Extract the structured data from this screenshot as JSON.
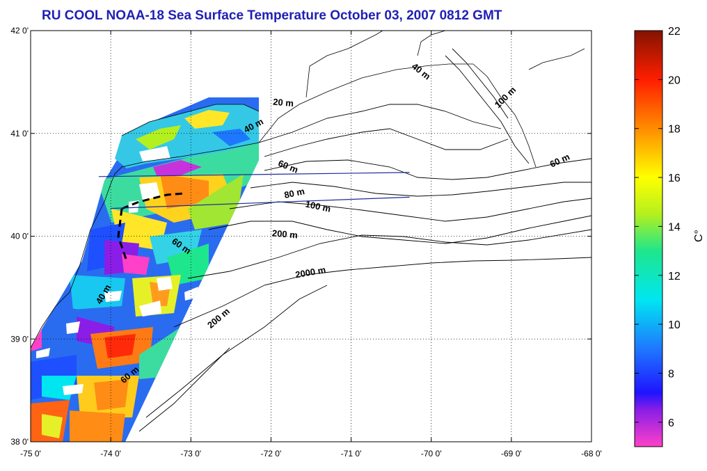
{
  "title": "RU COOL  NOAA-18 Sea Surface Temperature October 03, 2007 0812 GMT",
  "colors": {
    "title": "#1f1fb4",
    "coast": "#000000",
    "transect": "#1a2a9c",
    "grid": "#000000"
  },
  "map": {
    "lon_range": [
      -75,
      -68
    ],
    "lat_range": [
      38,
      42
    ],
    "x_ticks": [
      {
        "value": -75,
        "label": "-75 0'"
      },
      {
        "value": -74,
        "label": "-74 0'"
      },
      {
        "value": -73,
        "label": "-73 0'"
      },
      {
        "value": -72,
        "label": "-72 0'"
      },
      {
        "value": -71,
        "label": "-71 0'"
      },
      {
        "value": -70,
        "label": "-70 0'"
      },
      {
        "value": -69,
        "label": "-69 0'"
      },
      {
        "value": -68,
        "label": "-68 0'"
      }
    ],
    "y_ticks": [
      {
        "value": 42,
        "label": "42 0'"
      },
      {
        "value": 41,
        "label": "41 0'"
      },
      {
        "value": 40,
        "label": "40 0'"
      },
      {
        "value": 39,
        "label": "39 0'"
      },
      {
        "value": 38,
        "label": "38 0'"
      }
    ],
    "contour_labels": [
      {
        "text": "20 m",
        "lon": -71.85,
        "lat": 41.27,
        "rotate": 5
      },
      {
        "text": "40 m",
        "lon": -72.2,
        "lat": 41.05,
        "rotate": -28
      },
      {
        "text": "40 m",
        "lon": -70.15,
        "lat": 41.58,
        "rotate": 38
      },
      {
        "text": "100 m",
        "lon": -69.05,
        "lat": 41.33,
        "rotate": -45
      },
      {
        "text": "60 m",
        "lon": -71.8,
        "lat": 40.65,
        "rotate": 22
      },
      {
        "text": "60 m",
        "lon": -68.38,
        "lat": 40.71,
        "rotate": -25
      },
      {
        "text": "80 m",
        "lon": -71.7,
        "lat": 40.39,
        "rotate": -12
      },
      {
        "text": "100 m",
        "lon": -71.42,
        "lat": 40.26,
        "rotate": 12
      },
      {
        "text": "200 m",
        "lon": -71.83,
        "lat": 39.99,
        "rotate": 5
      },
      {
        "text": "2000 m",
        "lon": -71.5,
        "lat": 39.62,
        "rotate": -10
      },
      {
        "text": "60 m",
        "lon": -73.14,
        "lat": 39.88,
        "rotate": 35
      },
      {
        "text": "200 m",
        "lon": -72.63,
        "lat": 39.18,
        "rotate": -40
      },
      {
        "text": "60 m",
        "lon": -73.74,
        "lat": 38.63,
        "rotate": -40
      },
      {
        "text": "40 m",
        "lon": -74.06,
        "lat": 39.42,
        "rotate": -60
      }
    ],
    "transects": [
      {
        "start": [
          -74.15,
          40.58
        ],
        "end": [
          -70.27,
          40.62
        ]
      },
      {
        "start": [
          -74.0,
          40.27
        ],
        "end": [
          -70.27,
          40.38
        ]
      }
    ]
  },
  "colorbar": {
    "min": 5,
    "max": 22,
    "ticks": [
      22,
      20,
      18,
      16,
      14,
      12,
      10,
      8,
      6
    ],
    "tick_labels": [
      "22",
      "20",
      "18",
      "16",
      "14",
      "12",
      "10",
      "8",
      "6"
    ],
    "unit_label": "C°",
    "stops": [
      {
        "value": 5,
        "color": "#ff40c8"
      },
      {
        "value": 6.5,
        "color": "#8a1ee6"
      },
      {
        "value": 7.2,
        "color": "#1f14ff"
      },
      {
        "value": 9,
        "color": "#1e78ff"
      },
      {
        "value": 11,
        "color": "#00e6f0"
      },
      {
        "value": 13,
        "color": "#1ee68c"
      },
      {
        "value": 14.5,
        "color": "#b4f01e"
      },
      {
        "value": 16,
        "color": "#ffff00"
      },
      {
        "value": 18,
        "color": "#ff8c00"
      },
      {
        "value": 20,
        "color": "#ff1e00"
      },
      {
        "value": 22,
        "color": "#821400"
      }
    ]
  }
}
